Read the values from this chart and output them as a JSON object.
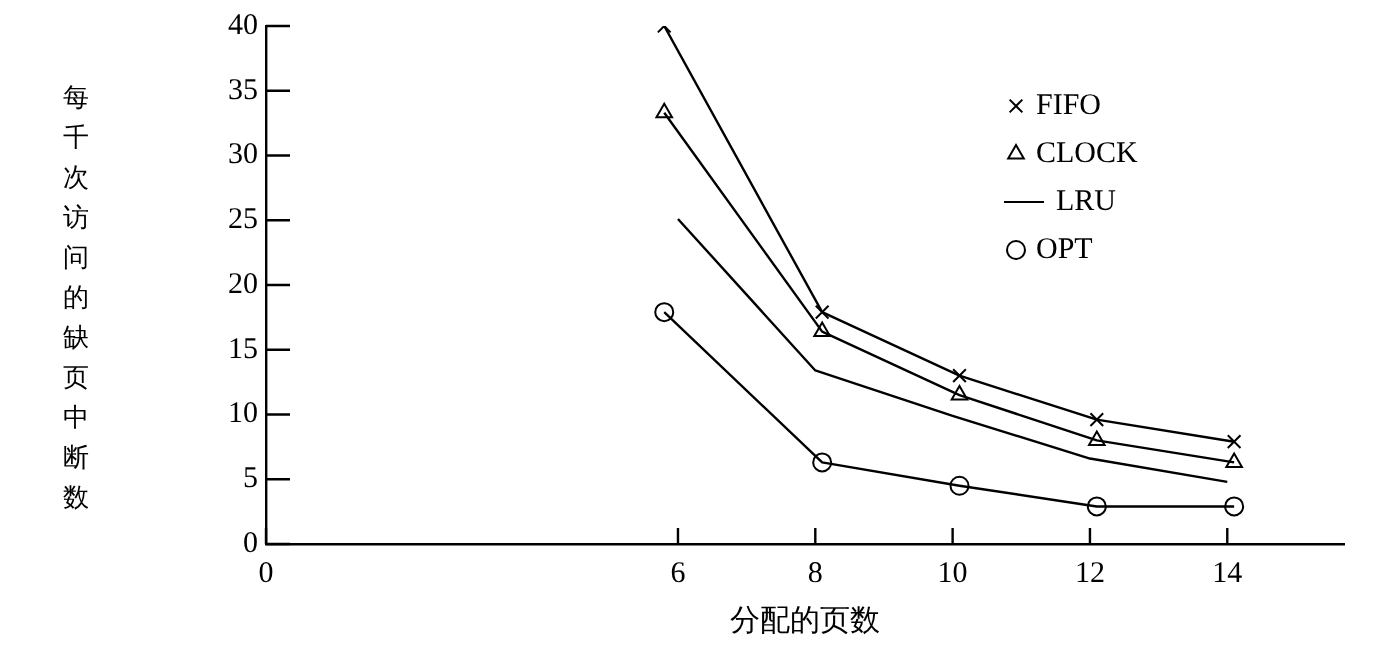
{
  "chart_data": {
    "type": "line",
    "xlabel": "分配的页数",
    "ylabel": "每千次访问的缺页中断数",
    "x": [
      5.8,
      8.1,
      10.1,
      12.1,
      14.1
    ],
    "series": [
      {
        "name": "FIFO",
        "color": "#000000",
        "marker": "cross",
        "values": [
          40,
          17.9,
          13,
          9.6,
          7.9
        ]
      },
      {
        "name": "CLOCK",
        "color": "#000000",
        "marker": "triangle",
        "values": [
          33.3,
          16.4,
          11.5,
          8,
          6.3
        ]
      },
      {
        "name": "LRU",
        "color": "#000000",
        "marker": "none",
        "x": [
          6,
          8,
          10,
          12,
          14
        ],
        "values": [
          25.1,
          13.4,
          9.9,
          6.6,
          4.8
        ]
      },
      {
        "name": "OPT",
        "color": "#000000",
        "marker": "circle",
        "values": [
          17.9,
          6.3,
          4.5,
          2.9,
          2.9
        ]
      }
    ],
    "xlim": [
      0,
      15.7
    ],
    "xticks": [
      0,
      6,
      8,
      10,
      12,
      14
    ],
    "ylim": [
      0,
      40
    ],
    "yticks": [
      0,
      5,
      10,
      15,
      20,
      25,
      30,
      35,
      40
    ],
    "grid": false,
    "legend": "top right",
    "line_style": "solid"
  }
}
